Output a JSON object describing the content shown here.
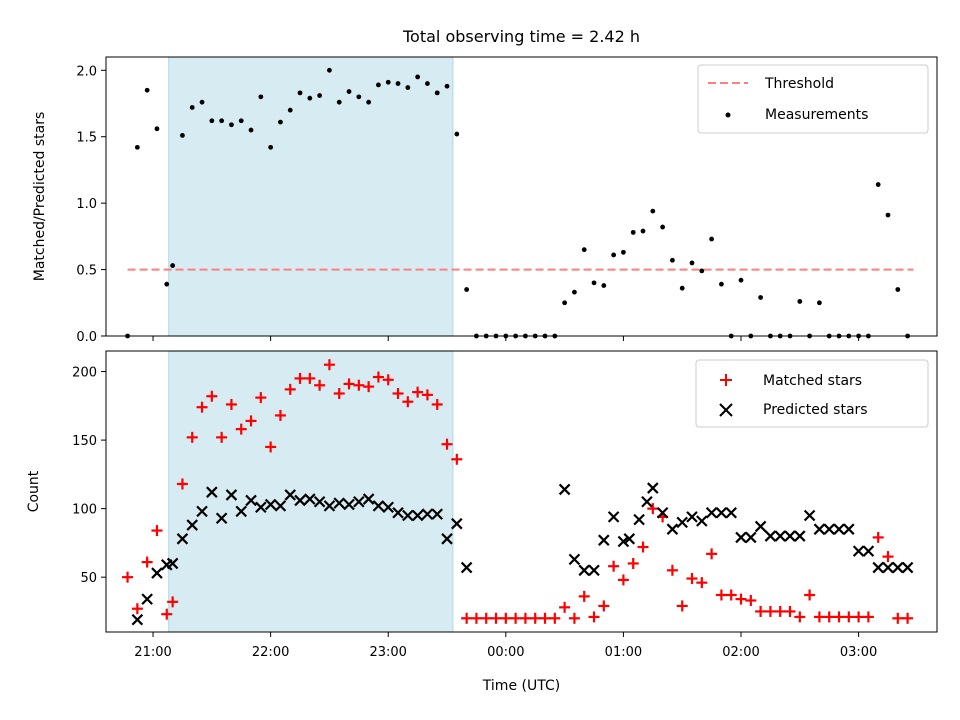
{
  "chart_data": [
    {
      "type": "scatter",
      "title": "Total observing time = 2.42 h",
      "xlabel": "",
      "ylabel": "Matched/Predicted stars",
      "xlim": [
        "20:36",
        "03:40"
      ],
      "ylim": [
        0,
        2.1
      ],
      "yticks": [
        0.0,
        0.5,
        1.0,
        1.5,
        2.0
      ],
      "ytick_labels": [
        "0.0",
        "0.5",
        "1.0",
        "1.5",
        "2.0"
      ],
      "grid": false,
      "legend": {
        "placement": "top-right",
        "entries": [
          "Threshold",
          "Measurements"
        ]
      },
      "shaded_span": [
        "21:08",
        "23:33"
      ],
      "threshold": {
        "name": "Threshold",
        "value": 0.5,
        "x_range": [
          "20:47",
          "03:28"
        ],
        "color": "#ff7f7f"
      },
      "series": [
        {
          "name": "Measurements",
          "color": "#000000",
          "marker": "dot",
          "x": [
            "20:47",
            "20:52",
            "20:57",
            "21:02",
            "21:07",
            "21:10",
            "21:15",
            "21:20",
            "21:25",
            "21:30",
            "21:35",
            "21:40",
            "21:45",
            "21:50",
            "21:55",
            "22:00",
            "22:05",
            "22:10",
            "22:15",
            "22:20",
            "22:25",
            "22:30",
            "22:35",
            "22:40",
            "22:45",
            "22:50",
            "22:55",
            "23:00",
            "23:05",
            "23:10",
            "23:15",
            "23:20",
            "23:25",
            "23:30",
            "23:35",
            "23:40",
            "23:45",
            "23:50",
            "23:55",
            "00:00",
            "00:05",
            "00:10",
            "00:15",
            "00:20",
            "00:25",
            "00:30",
            "00:35",
            "00:40",
            "00:45",
            "00:50",
            "00:55",
            "01:00",
            "01:05",
            "01:10",
            "01:15",
            "01:20",
            "01:25",
            "01:30",
            "01:35",
            "01:40",
            "01:45",
            "01:50",
            "01:55",
            "02:00",
            "02:05",
            "02:10",
            "02:15",
            "02:20",
            "02:25",
            "02:30",
            "02:35",
            "02:40",
            "02:45",
            "02:50",
            "02:55",
            "03:00",
            "03:05",
            "03:10",
            "03:15",
            "03:20",
            "03:25"
          ],
          "y": [
            0.0,
            1.42,
            1.85,
            1.56,
            0.39,
            0.53,
            1.51,
            1.72,
            1.76,
            1.62,
            1.62,
            1.59,
            1.62,
            1.55,
            1.8,
            1.42,
            1.61,
            1.7,
            1.83,
            1.79,
            1.81,
            2.0,
            1.76,
            1.84,
            1.8,
            1.76,
            1.89,
            1.91,
            1.9,
            1.87,
            1.95,
            1.9,
            1.83,
            1.88,
            1.52,
            0.35,
            0.0,
            0.0,
            0.0,
            0.0,
            0.0,
            0.0,
            0.0,
            0.0,
            0.0,
            0.25,
            0.33,
            0.65,
            0.4,
            0.38,
            0.61,
            0.63,
            0.78,
            0.79,
            0.94,
            0.82,
            0.57,
            0.36,
            0.55,
            0.49,
            0.73,
            0.39,
            0.0,
            0.42,
            0.0,
            0.29,
            0.0,
            0.0,
            0.0,
            0.26,
            0.0,
            0.25,
            0.0,
            0.0,
            0.0,
            0.0,
            0.0,
            1.14,
            0.91,
            0.35,
            0.0
          ]
        }
      ]
    },
    {
      "type": "scatter",
      "title": "",
      "xlabel": "Time (UTC)",
      "ylabel": "Count",
      "xlim": [
        "20:36",
        "03:40"
      ],
      "ylim": [
        10,
        215
      ],
      "xticks": [
        "21:00",
        "22:00",
        "23:00",
        "00:00",
        "01:00",
        "02:00",
        "03:00"
      ],
      "yticks": [
        50,
        100,
        150,
        200
      ],
      "grid": false,
      "legend": {
        "placement": "top-right",
        "entries": [
          "Matched stars",
          "Predicted stars"
        ]
      },
      "shaded_span": [
        "21:08",
        "23:33"
      ],
      "series": [
        {
          "name": "Matched stars",
          "color": "#ff0000",
          "marker": "plus",
          "x": [
            "20:47",
            "20:52",
            "20:57",
            "21:02",
            "21:07",
            "21:10",
            "21:15",
            "21:20",
            "21:25",
            "21:30",
            "21:35",
            "21:40",
            "21:45",
            "21:50",
            "21:55",
            "22:00",
            "22:05",
            "22:10",
            "22:15",
            "22:20",
            "22:25",
            "22:30",
            "22:35",
            "22:40",
            "22:45",
            "22:50",
            "22:55",
            "23:00",
            "23:05",
            "23:10",
            "23:15",
            "23:20",
            "23:25",
            "23:30",
            "23:35",
            "23:40",
            "23:45",
            "23:50",
            "23:55",
            "00:00",
            "00:05",
            "00:10",
            "00:15",
            "00:20",
            "00:25",
            "00:30",
            "00:35",
            "00:40",
            "00:45",
            "00:50",
            "00:55",
            "01:00",
            "01:05",
            "01:10",
            "01:15",
            "01:20",
            "01:25",
            "01:30",
            "01:35",
            "01:40",
            "01:45",
            "01:50",
            "01:55",
            "02:00",
            "02:05",
            "02:10",
            "02:15",
            "02:20",
            "02:25",
            "02:30",
            "02:35",
            "02:40",
            "02:45",
            "02:50",
            "02:55",
            "03:00",
            "03:05",
            "03:10",
            "03:15",
            "03:20",
            "03:25"
          ],
          "y": [
            50,
            27,
            61,
            84,
            23,
            32,
            118,
            152,
            174,
            182,
            152,
            176,
            158,
            164,
            181,
            145,
            168,
            187,
            195,
            195,
            190,
            205,
            184,
            191,
            190,
            189,
            196,
            194,
            184,
            178,
            185,
            183,
            176,
            147,
            136,
            20,
            20,
            20,
            20,
            20,
            20,
            20,
            20,
            20,
            20,
            28,
            20,
            36,
            21,
            29,
            58,
            48,
            60,
            72,
            100,
            94,
            55,
            29,
            49,
            46,
            67,
            37,
            37,
            34,
            33,
            25,
            25,
            25,
            25,
            21,
            37,
            21,
            21,
            21,
            21,
            21,
            21,
            79,
            65,
            20,
            20
          ]
        },
        {
          "name": "Predicted stars",
          "color": "#000000",
          "marker": "x",
          "x": [
            "20:52",
            "20:57",
            "21:02",
            "21:07",
            "21:10",
            "21:15",
            "21:20",
            "21:25",
            "21:30",
            "21:35",
            "21:40",
            "21:45",
            "21:50",
            "21:55",
            "22:00",
            "22:05",
            "22:10",
            "22:15",
            "22:20",
            "22:25",
            "22:30",
            "22:35",
            "22:40",
            "22:45",
            "22:50",
            "22:55",
            "23:00",
            "23:05",
            "23:10",
            "23:15",
            "23:20",
            "23:25",
            "23:30",
            "23:35",
            "23:40",
            "00:30",
            "00:35",
            "00:40",
            "00:45",
            "00:50",
            "00:55",
            "01:00",
            "01:03",
            "01:08",
            "01:12",
            "01:15",
            "01:20",
            "01:25",
            "01:30",
            "01:35",
            "01:40",
            "01:45",
            "01:50",
            "01:55",
            "02:00",
            "02:05",
            "02:10",
            "02:15",
            "02:20",
            "02:25",
            "02:30",
            "02:35",
            "02:40",
            "02:45",
            "02:50",
            "02:55",
            "03:00",
            "03:05",
            "03:10",
            "03:15",
            "03:20",
            "03:25"
          ],
          "y": [
            19,
            34,
            53,
            59,
            60,
            78,
            88,
            98,
            112,
            93,
            110,
            98,
            106,
            101,
            103,
            102,
            110,
            106,
            107,
            105,
            102,
            104,
            103,
            105,
            107,
            102,
            101,
            97,
            95,
            95,
            96,
            96,
            78,
            89,
            57,
            114,
            63,
            55,
            55,
            77,
            94,
            76,
            78,
            92,
            105,
            115,
            97,
            85,
            90,
            94,
            91,
            97,
            97,
            97,
            79,
            79,
            87,
            80,
            80,
            80,
            80,
            95,
            85,
            85,
            85,
            85,
            69,
            69,
            57,
            57,
            57,
            57
          ]
        }
      ]
    }
  ]
}
